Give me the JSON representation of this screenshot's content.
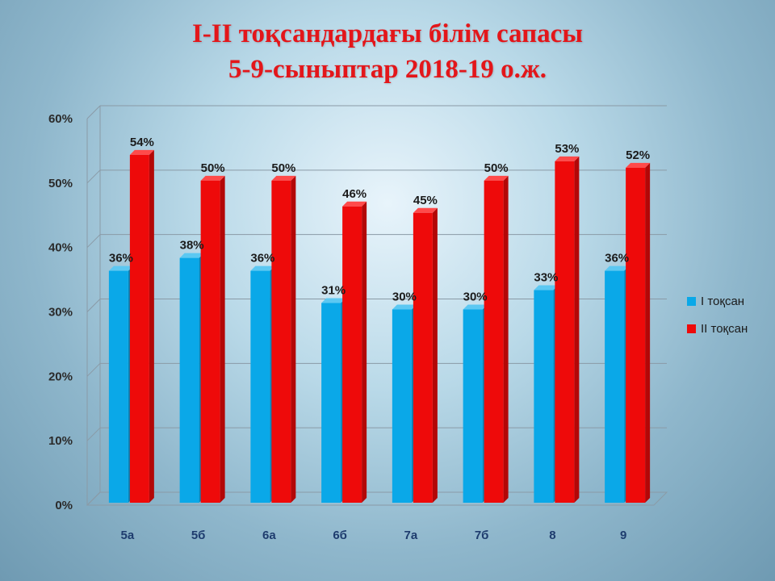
{
  "title_line1": "I-II  тоқсандардағы білім сапасы",
  "title_line2": "5-9-сыныптар  2018-19  о.ж.",
  "colors": {
    "series1": "#0aa8e8",
    "series2": "#ee0a0a",
    "title": "#e3161a"
  },
  "chart_data": {
    "type": "bar",
    "categories": [
      "5а",
      "5б",
      "6а",
      "6б",
      "7а",
      "7б",
      "8",
      "9"
    ],
    "series": [
      {
        "name": "I тоқсан",
        "values": [
          36,
          38,
          36,
          31,
          30,
          30,
          33,
          36
        ],
        "labels": [
          "36%",
          "38%",
          "36%",
          "31%",
          "30%",
          "30%",
          "33%",
          "36%"
        ]
      },
      {
        "name": "II тоқсан",
        "values": [
          54,
          50,
          50,
          46,
          45,
          50,
          53,
          52
        ],
        "labels": [
          "54%",
          "50%",
          "50%",
          "46%",
          "45%",
          "50%",
          "53%",
          "52%"
        ]
      }
    ],
    "yticks": [
      "0%",
      "10%",
      "20%",
      "30%",
      "40%",
      "50%",
      "60%"
    ],
    "ylim": [
      0,
      60
    ],
    "grid": true,
    "legend_position": "right"
  }
}
